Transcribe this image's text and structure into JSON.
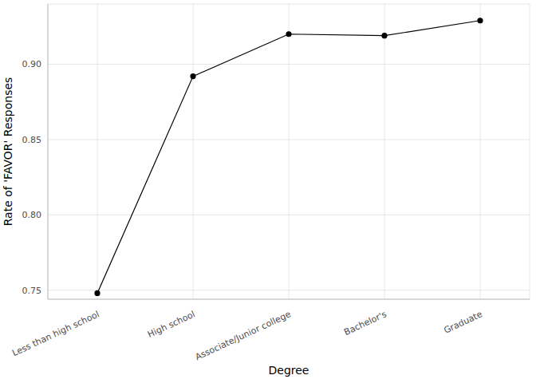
{
  "chart_data": {
    "type": "line",
    "xlabel": "Degree",
    "ylabel": "Rate of 'FAVOR' Responses",
    "categories": [
      "Less than high school",
      "High school",
      "Associate/Junior college",
      "Bachelor's",
      "Graduate"
    ],
    "values": [
      0.748,
      0.892,
      0.92,
      0.919,
      0.929
    ],
    "color": "#000000",
    "marker": "circle",
    "ylim": [
      0.744,
      0.94
    ],
    "yticks": [
      0.75,
      {
        "value": 0.8,
        "label": "0.80"
      },
      0.85,
      {
        "value": 0.9,
        "label": "0.90"
      }
    ],
    "grid": true
  }
}
